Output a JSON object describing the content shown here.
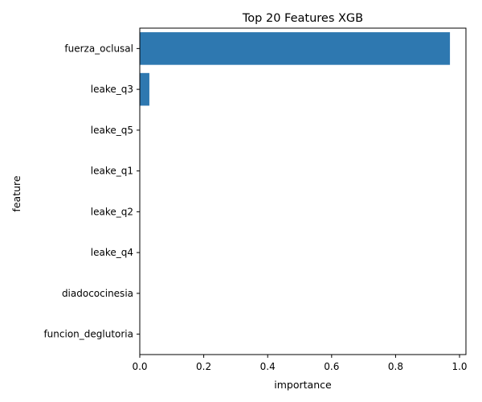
{
  "chart_data": {
    "type": "bar",
    "orientation": "horizontal",
    "title": "Top 20 Features XGB",
    "xlabel": "importance",
    "ylabel": "feature",
    "xlim": [
      0,
      1.02
    ],
    "xticks": [
      "0.0",
      "0.2",
      "0.4",
      "0.6",
      "0.8",
      "1.0"
    ],
    "categories": [
      "fuerza_oclusal",
      "leake_q3",
      "leake_q5",
      "leake_q1",
      "leake_q2",
      "leake_q4",
      "diadococinesia",
      "funcion_deglutoria"
    ],
    "values": [
      0.97,
      0.03,
      0.0,
      0.0,
      0.0,
      0.0,
      0.0,
      0.0
    ],
    "grid": false,
    "legend": "none",
    "bar_color": "#2e78b0"
  }
}
